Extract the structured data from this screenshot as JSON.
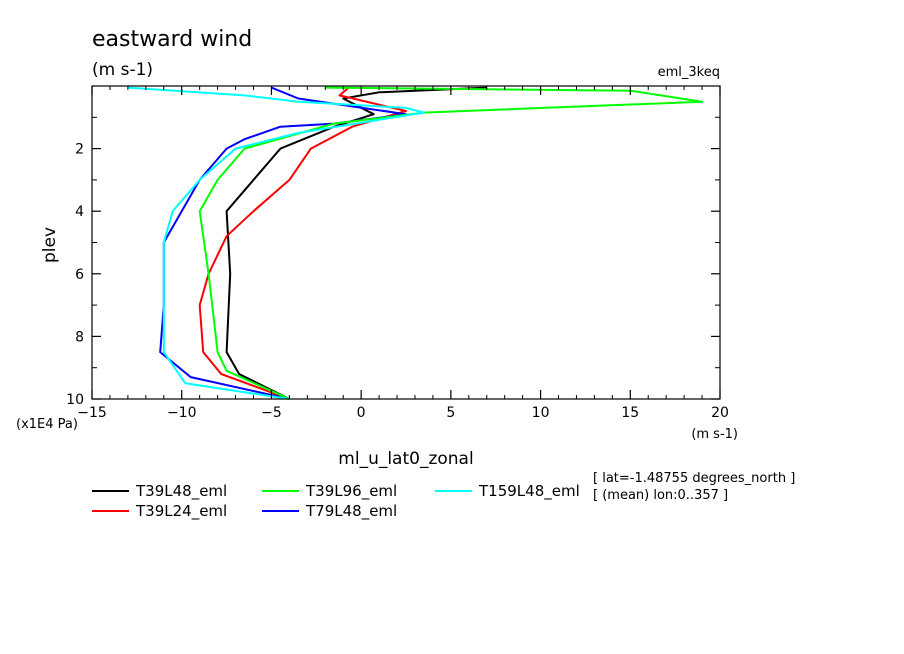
{
  "chart_data": {
    "type": "line",
    "title": "eastward wind",
    "subtitle": "(m s-1)",
    "experiment": "eml_3keq",
    "xlabel": "ml_u_lat0_zonal",
    "xunits": "(m s-1)",
    "ylabel": "plev",
    "yunits": "(x1E4 Pa)",
    "xlim": [
      -15,
      20
    ],
    "ylim": [
      10,
      0
    ],
    "xticks": [
      -15,
      -10,
      -5,
      0,
      5,
      10,
      15,
      20
    ],
    "xtick_labels": [
      "−15",
      "−10",
      "−5",
      "0",
      "5",
      "10",
      "15",
      "20"
    ],
    "yticks": [
      2,
      4,
      6,
      8,
      10
    ],
    "ytick_labels": [
      "2",
      "4",
      "6",
      "8",
      "10"
    ],
    "notes": [
      "[ lat=-1.48755 degrees_north ]",
      "[ (mean) lon:0..357 ]"
    ],
    "series": [
      {
        "name": "T39L48_eml",
        "color": "#000000",
        "points": [
          [
            7,
            0.05
          ],
          [
            1,
            0.2
          ],
          [
            -1,
            0.4
          ],
          [
            0.7,
            0.9
          ],
          [
            -1.5,
            1.3
          ],
          [
            -4.5,
            2
          ],
          [
            -7.5,
            4
          ],
          [
            -7.3,
            6
          ],
          [
            -7.5,
            8.5
          ],
          [
            -6.8,
            9.2
          ],
          [
            -4,
            10
          ]
        ]
      },
      {
        "name": "T39L24_eml",
        "color": "#ff0000",
        "points": [
          [
            -0.7,
            0.05
          ],
          [
            -1.2,
            0.3
          ],
          [
            2.5,
            0.8
          ],
          [
            -0.5,
            1.3
          ],
          [
            -2.8,
            2
          ],
          [
            -4,
            3
          ],
          [
            -6,
            4
          ],
          [
            -7.5,
            4.8
          ],
          [
            -8.5,
            6
          ],
          [
            -9,
            7
          ],
          [
            -8.8,
            8.5
          ],
          [
            -7.8,
            9.2
          ],
          [
            -4,
            10
          ]
        ]
      },
      {
        "name": "T79L48_eml",
        "color": "#0000ff",
        "points": [
          [
            -5,
            0.05
          ],
          [
            -3.5,
            0.4
          ],
          [
            2.5,
            0.9
          ],
          [
            -1.5,
            1.2
          ],
          [
            -4.5,
            1.3
          ],
          [
            -6.5,
            1.7
          ],
          [
            -7.5,
            2
          ],
          [
            -9,
            3
          ],
          [
            -10,
            4
          ],
          [
            -11,
            5
          ],
          [
            -11,
            7
          ],
          [
            -11.2,
            8.5
          ],
          [
            -9.5,
            9.3
          ],
          [
            -4,
            10
          ]
        ]
      },
      {
        "name": "T39L96_eml",
        "color": "#00ff00",
        "points": [
          [
            -2,
            0.05
          ],
          [
            15,
            0.15
          ],
          [
            19,
            0.5
          ],
          [
            3.5,
            0.85
          ],
          [
            -1.5,
            1.2
          ],
          [
            -6.5,
            2
          ],
          [
            -8,
            3
          ],
          [
            -9,
            4
          ],
          [
            -8.5,
            6
          ],
          [
            -8,
            8.5
          ],
          [
            -7.5,
            9.1
          ],
          [
            -4,
            10
          ]
        ]
      },
      {
        "name": "T159L48_eml",
        "color": "#00ffff",
        "points": [
          [
            -13,
            0.05
          ],
          [
            -6.5,
            0.3
          ],
          [
            -3.5,
            0.5
          ],
          [
            2.5,
            0.7
          ],
          [
            3.5,
            0.85
          ],
          [
            -3.5,
            1.5
          ],
          [
            -7,
            2
          ],
          [
            -9,
            3
          ],
          [
            -10.5,
            4
          ],
          [
            -11,
            5
          ],
          [
            -11,
            7
          ],
          [
            -11,
            8.5
          ],
          [
            -9.8,
            9.5
          ],
          [
            -4,
            10
          ]
        ]
      }
    ],
    "legend": {
      "placement": "bottom-left",
      "entries": [
        "T39L48_eml",
        "T39L96_eml",
        "T159L48_eml",
        "T39L24_eml",
        "T79L48_eml"
      ]
    }
  }
}
